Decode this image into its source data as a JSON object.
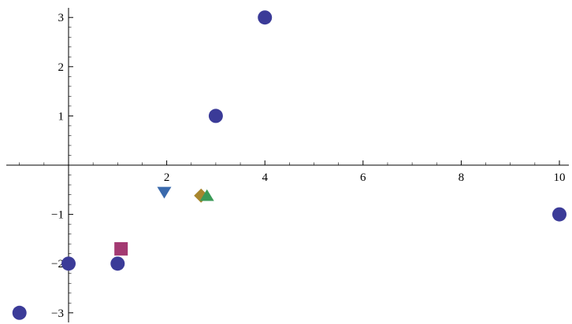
{
  "chart_data": {
    "type": "scatter",
    "title": "",
    "xlabel": "",
    "ylabel": "",
    "xlim": [
      -1.0,
      10.0
    ],
    "ylim": [
      -3.2,
      3.3
    ],
    "x_ticks": [
      2,
      4,
      6,
      8,
      10
    ],
    "y_ticks": [
      -3,
      -2,
      -1,
      1,
      2,
      3
    ],
    "x_tick_labels": [
      "2",
      "4",
      "6",
      "8",
      "10"
    ],
    "y_tick_labels": [
      "−3",
      "−2",
      "−1",
      "1",
      "2",
      "3"
    ],
    "grid": false,
    "legend": "none",
    "series": [
      {
        "marker": "circle",
        "color": "#3b3b98",
        "points": [
          {
            "x": -1.0,
            "y": -3.0
          },
          {
            "x": 0.0,
            "y": -2.0
          },
          {
            "x": 1.0,
            "y": -2.0
          },
          {
            "x": 3.0,
            "y": 1.0
          },
          {
            "x": 4.0,
            "y": 3.0
          },
          {
            "x": 10.0,
            "y": -1.0
          }
        ]
      },
      {
        "marker": "square",
        "color": "#a33a72",
        "points": [
          {
            "x": 1.07,
            "y": -1.7
          }
        ]
      },
      {
        "marker": "triangle-down",
        "color": "#3a6aad",
        "points": [
          {
            "x": 1.95,
            "y": -0.55
          }
        ]
      },
      {
        "marker": "diamond",
        "color": "#a8862e",
        "points": [
          {
            "x": 2.7,
            "y": -0.62
          }
        ]
      },
      {
        "marker": "triangle-up",
        "color": "#3a9a57",
        "points": [
          {
            "x": 2.82,
            "y": -0.62
          }
        ]
      }
    ]
  }
}
